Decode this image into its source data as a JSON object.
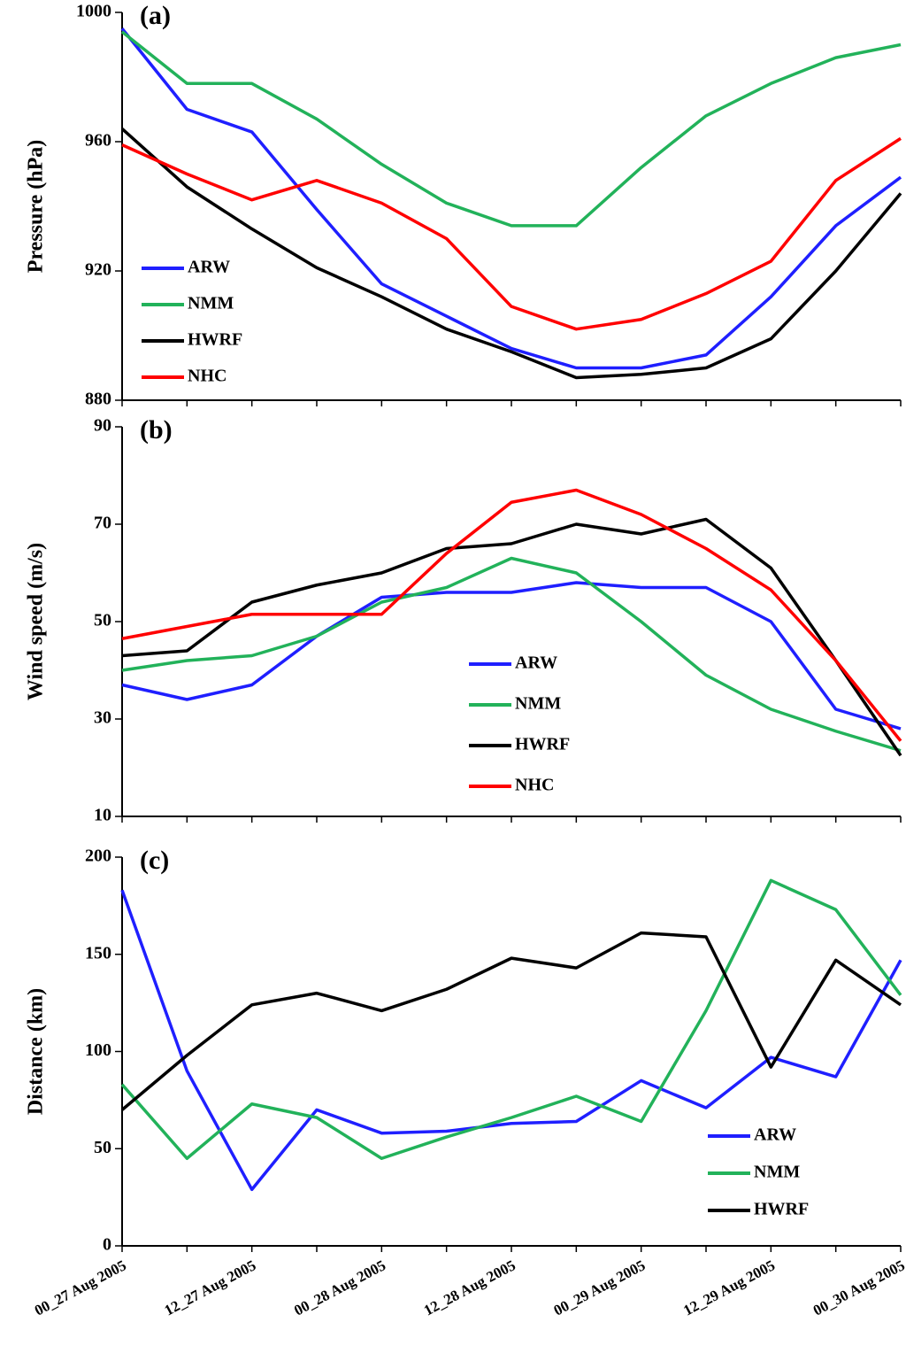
{
  "chart_data": [
    {
      "type": "line",
      "label": "(a)",
      "ylabel": "Pressure (hPa)",
      "ylim": [
        880,
        1000
      ],
      "yticks": [
        880,
        920,
        960,
        1000
      ],
      "legend": "bottom left",
      "series": [
        {
          "name": "ARW",
          "color": "#1f1fff",
          "values": [
            995,
            970,
            963,
            939,
            916,
            906,
            896,
            890,
            890,
            894,
            912,
            934,
            949
          ]
        },
        {
          "name": "NMM",
          "color": "#22b25a",
          "values": [
            994,
            978,
            978,
            967,
            953,
            941,
            934,
            934,
            952,
            968,
            978,
            986,
            990
          ]
        },
        {
          "name": "HWRF",
          "color": "#000000",
          "values": [
            964,
            946,
            933,
            921,
            912,
            902,
            895,
            887,
            888,
            890,
            899,
            920,
            944
          ]
        },
        {
          "name": "NHC",
          "color": "#ff0000",
          "values": [
            959,
            950,
            942,
            948,
            941,
            930,
            909,
            902,
            905,
            913,
            923,
            948,
            961
          ]
        }
      ]
    },
    {
      "type": "line",
      "label": "(b)",
      "ylabel": "Wind speed (m/s)",
      "ylim": [
        10,
        90
      ],
      "yticks": [
        10,
        30,
        50,
        70,
        90
      ],
      "legend": "center",
      "series": [
        {
          "name": "ARW",
          "color": "#1f1fff",
          "values": [
            37,
            34,
            37,
            47,
            55,
            56,
            56,
            58,
            57,
            57,
            50,
            32,
            28
          ]
        },
        {
          "name": "NMM",
          "color": "#22b25a",
          "values": [
            40,
            42,
            43,
            47,
            54,
            57,
            63,
            60,
            50,
            39,
            32,
            27.5,
            23.5
          ]
        },
        {
          "name": "HWRF",
          "color": "#000000",
          "values": [
            43,
            44,
            54,
            57.5,
            60,
            65,
            66,
            70,
            68,
            71,
            61,
            42,
            22.5
          ]
        },
        {
          "name": "NHC",
          "color": "#ff0000",
          "values": [
            46.5,
            49,
            51.5,
            51.5,
            51.5,
            64,
            74.5,
            77,
            72,
            65,
            56.5,
            42,
            25.5
          ]
        }
      ]
    },
    {
      "type": "line",
      "label": "(c)",
      "ylabel": "Distance (km)",
      "ylim": [
        0,
        200
      ],
      "yticks": [
        0,
        50,
        100,
        150,
        200
      ],
      "legend": "bottom right",
      "categories": [
        "00_27 Aug 2005",
        null,
        "12_27 Aug 2005",
        null,
        "00_28 Aug 2005",
        null,
        "12_28 Aug 2005",
        null,
        "00_29 Aug 2005",
        null,
        "12_29 Aug 2005",
        null,
        "00_30 Aug 2005"
      ],
      "series": [
        {
          "name": "ARW",
          "color": "#1f1fff",
          "values": [
            183,
            90,
            29,
            70,
            58,
            59,
            63,
            64,
            85,
            71,
            97,
            87,
            147
          ]
        },
        {
          "name": "NMM",
          "color": "#22b25a",
          "values": [
            83,
            45,
            73,
            66,
            45,
            56,
            66,
            77,
            64,
            121,
            188,
            173,
            129
          ]
        },
        {
          "name": "HWRF",
          "color": "#000000",
          "values": [
            70,
            98,
            124,
            130,
            121,
            132,
            148,
            143,
            161,
            159,
            92,
            147,
            124
          ]
        }
      ]
    }
  ]
}
